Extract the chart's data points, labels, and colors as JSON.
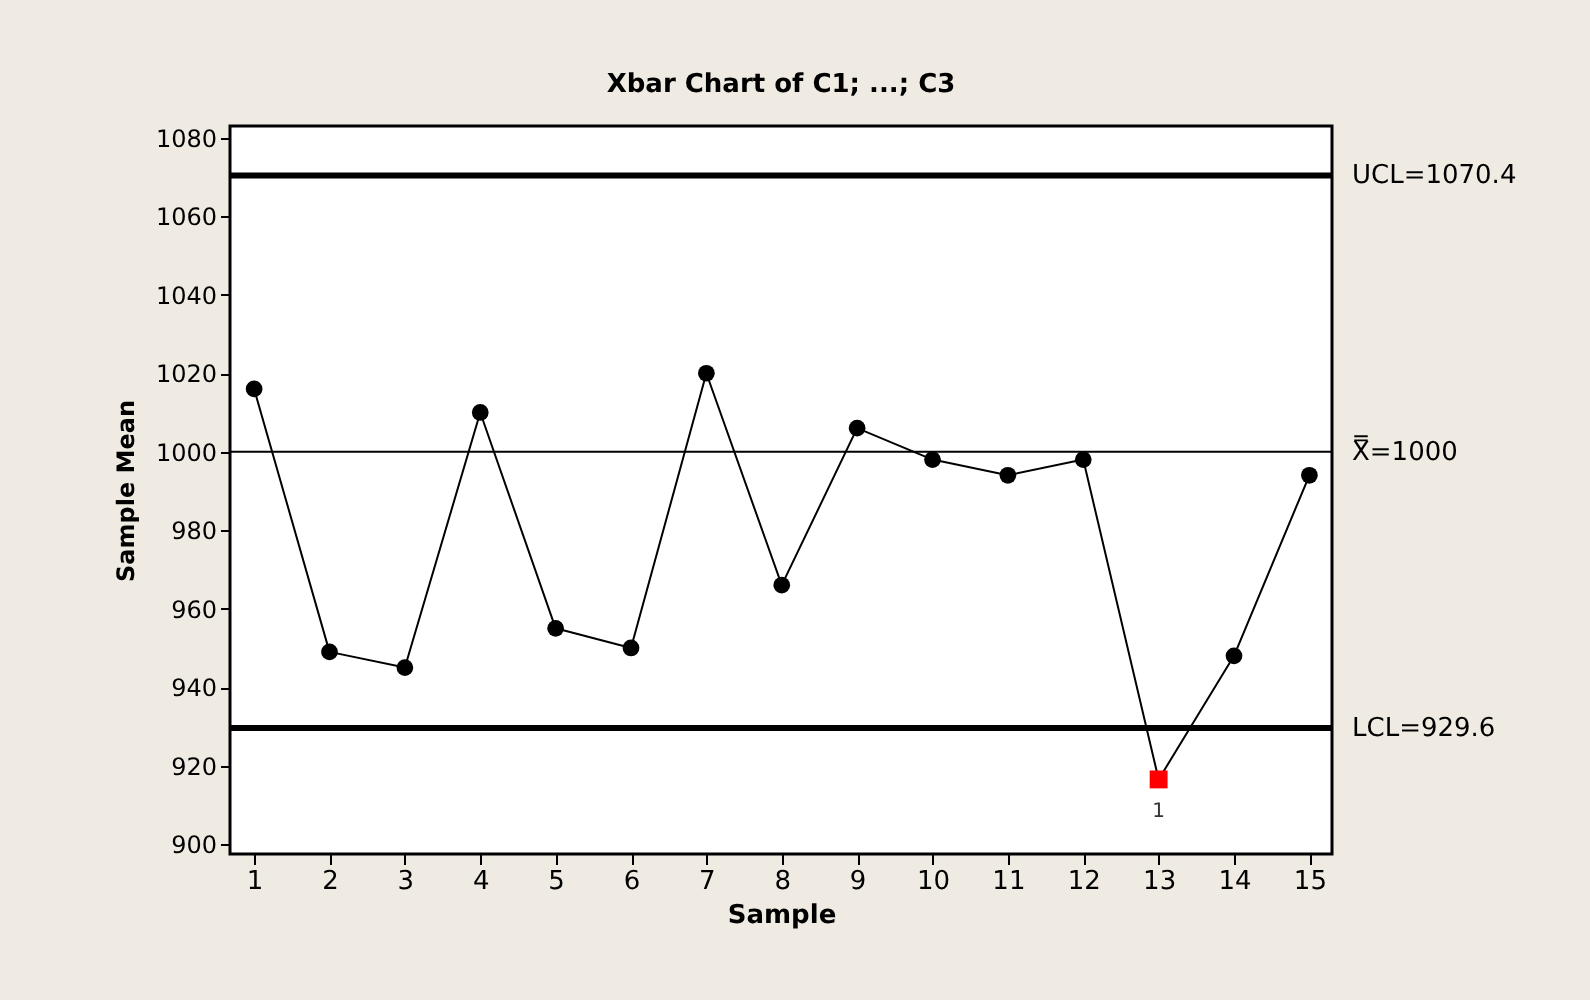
{
  "chart_data": {
    "type": "line",
    "title": "Xbar Chart of C1; ...; C3",
    "xlabel": "Sample",
    "ylabel": "Sample Mean",
    "x": [
      1,
      2,
      3,
      4,
      5,
      6,
      7,
      8,
      9,
      10,
      11,
      12,
      13,
      14,
      15
    ],
    "series": [
      {
        "color": "#000000",
        "marker": "none",
        "values": [
          1016,
          949,
          945,
          1010,
          955,
          950,
          1020,
          966,
          1006,
          998,
          994,
          998,
          916.5,
          948,
          994
        ]
      },
      {
        "type": "scatter",
        "color": "#000000",
        "marker": "circle",
        "values": [
          1016,
          949,
          945,
          1010,
          955,
          950,
          1020,
          966,
          1006,
          998,
          994,
          998,
          null,
          948,
          994
        ]
      },
      {
        "type": "scatter",
        "color": "#ff0000",
        "marker": "square",
        "x": [
          13
        ],
        "values": [
          916.5
        ]
      }
    ],
    "xlim": [
      0.68,
      15.3
    ],
    "xticks": [
      1,
      2,
      3,
      4,
      5,
      6,
      7,
      8,
      9,
      10,
      11,
      12,
      13,
      14,
      15
    ],
    "ylim": [
      897.5,
      1083
    ],
    "yticks": [
      900,
      920,
      940,
      960,
      980,
      1000,
      1020,
      1040,
      1060,
      1080
    ],
    "ref_lines": [
      {
        "axis": "y",
        "value": 1070.4,
        "label": "UCL=1070.4",
        "color": "#000000"
      },
      {
        "axis": "y",
        "value": 1000,
        "label": "X̿=1000",
        "color": "#000000"
      },
      {
        "axis": "y",
        "value": 929.6,
        "label": "LCL=929.6",
        "color": "#000000"
      }
    ],
    "annotations": [
      {
        "text": "1",
        "x": 13,
        "y": 916.5
      }
    ],
    "grid": false
  }
}
